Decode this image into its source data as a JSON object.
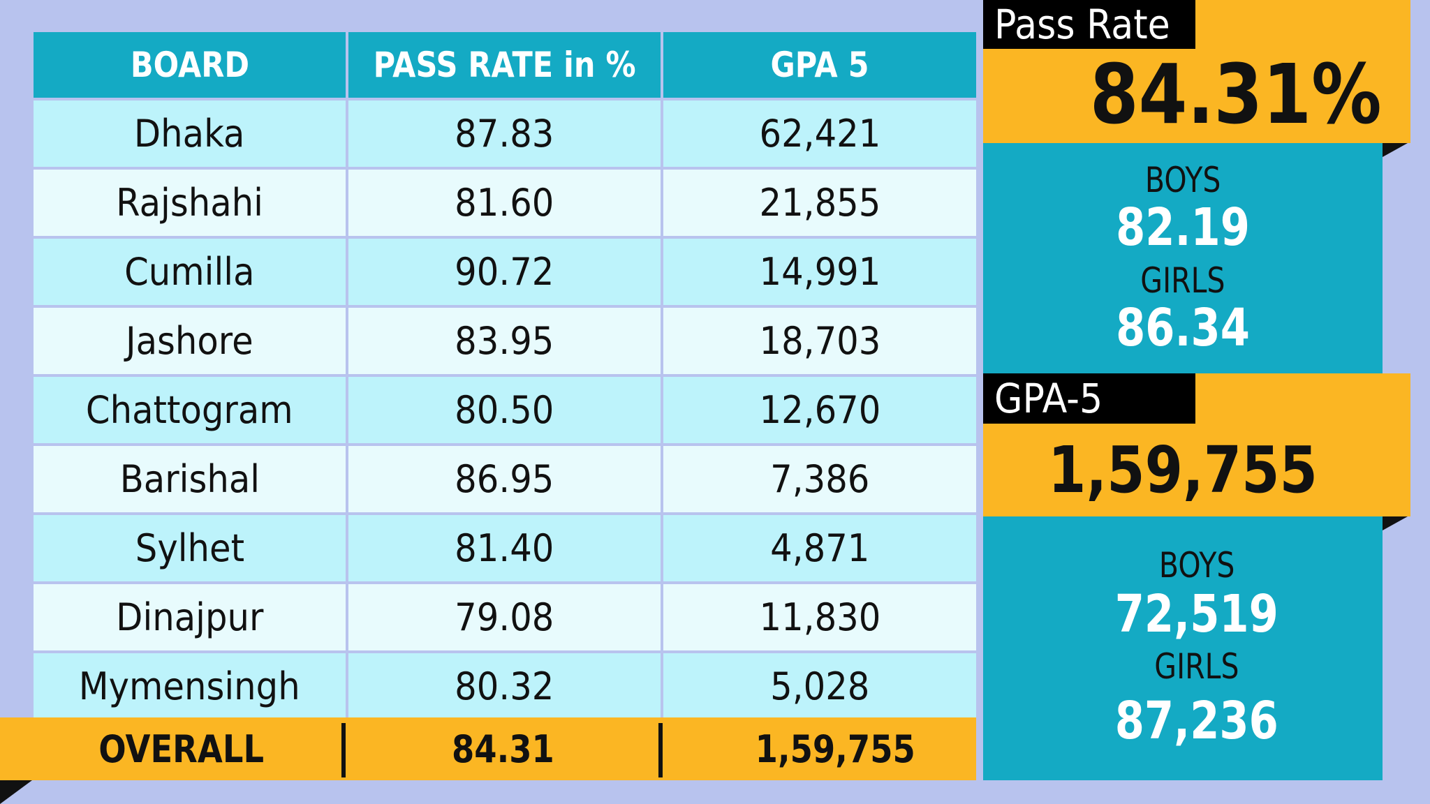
{
  "chart_data": {
    "type": "table",
    "columns": [
      "BOARD",
      "PASS RATE in %",
      "GPA 5"
    ],
    "rows": [
      {
        "board": "Dhaka",
        "pass_rate": "87.83",
        "gpa5": "62,421"
      },
      {
        "board": "Rajshahi",
        "pass_rate": "81.60",
        "gpa5": "21,855"
      },
      {
        "board": "Cumilla",
        "pass_rate": "90.72",
        "gpa5": "14,991"
      },
      {
        "board": "Jashore",
        "pass_rate": "83.95",
        "gpa5": "18,703"
      },
      {
        "board": "Chattogram",
        "pass_rate": "80.50",
        "gpa5": "12,670"
      },
      {
        "board": "Barishal",
        "pass_rate": "86.95",
        "gpa5": "7,386"
      },
      {
        "board": "Sylhet",
        "pass_rate": "81.40",
        "gpa5": "4,871"
      },
      {
        "board": "Dinajpur",
        "pass_rate": "79.08",
        "gpa5": "11,830"
      },
      {
        "board": "Mymensingh",
        "pass_rate": "80.32",
        "gpa5": "5,028"
      }
    ],
    "overall": {
      "board": "OVERALL",
      "pass_rate": "84.31",
      "gpa5": "1,59,755"
    }
  },
  "pass_rate_panel": {
    "tag": "Pass Rate",
    "value": "84.31%",
    "boys_label": "BOYS",
    "boys_value": "82.19",
    "girls_label": "GIRLS",
    "girls_value": "86.34"
  },
  "gpa5_panel": {
    "tag": "GPA-5",
    "value": "1,59,755",
    "boys_label": "BOYS",
    "boys_value": "72,519",
    "girls_label": "GIRLS",
    "girls_value": "87,236"
  },
  "colors": {
    "background": "#b8c3ee",
    "teal": "#14aac4",
    "orange": "#fbb623",
    "row_light": "#e8fbfd",
    "row_cyan": "#bdf3fb"
  }
}
